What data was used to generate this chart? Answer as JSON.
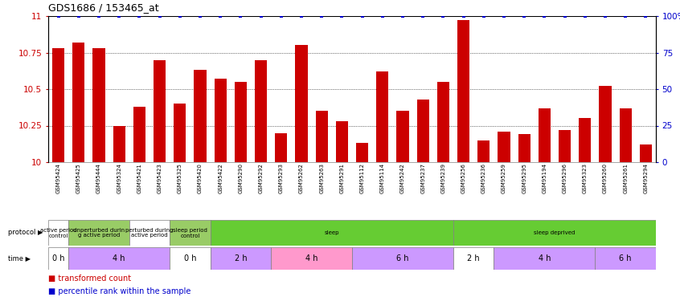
{
  "title": "GDS1686 / 153465_at",
  "samples": [
    "GSM95424",
    "GSM95425",
    "GSM95444",
    "GSM95324",
    "GSM95421",
    "GSM95423",
    "GSM95325",
    "GSM95420",
    "GSM95422",
    "GSM95290",
    "GSM95292",
    "GSM95293",
    "GSM95262",
    "GSM95263",
    "GSM95291",
    "GSM95112",
    "GSM95114",
    "GSM95242",
    "GSM95237",
    "GSM95239",
    "GSM95256",
    "GSM95236",
    "GSM95259",
    "GSM95295",
    "GSM95194",
    "GSM95296",
    "GSM95323",
    "GSM95260",
    "GSM95261",
    "GSM95294"
  ],
  "values": [
    10.78,
    10.82,
    10.78,
    10.25,
    10.38,
    10.7,
    10.4,
    10.63,
    10.57,
    10.55,
    10.7,
    10.2,
    10.8,
    10.35,
    10.28,
    10.13,
    10.62,
    10.35,
    10.43,
    10.55,
    10.97,
    10.15,
    10.21,
    10.19,
    10.37,
    10.22,
    10.3,
    10.52,
    10.37,
    10.12
  ],
  "bar_color": "#cc0000",
  "dot_color": "#0000cc",
  "ylim": [
    10,
    11
  ],
  "y2lim": [
    0,
    100
  ],
  "yticks": [
    10,
    10.25,
    10.5,
    10.75,
    11
  ],
  "y2ticks": [
    0,
    25,
    50,
    75,
    100
  ],
  "ytick_labels": [
    "10",
    "10.25",
    "10.5",
    "10.75",
    "11"
  ],
  "y2tick_labels": [
    "0",
    "25",
    "50",
    "75",
    "100%"
  ],
  "protocol_groups": [
    {
      "label": "active period\ncontrol",
      "start": 0,
      "end": 1,
      "color": "#ffffff"
    },
    {
      "label": "unperturbed durin\ng active period",
      "start": 1,
      "end": 4,
      "color": "#99cc66"
    },
    {
      "label": "perturbed during\nactive period",
      "start": 4,
      "end": 6,
      "color": "#ffffff"
    },
    {
      "label": "sleep period\ncontrol",
      "start": 6,
      "end": 8,
      "color": "#99cc66"
    },
    {
      "label": "sleep",
      "start": 8,
      "end": 20,
      "color": "#66cc33"
    },
    {
      "label": "sleep deprived",
      "start": 20,
      "end": 30,
      "color": "#66cc33"
    }
  ],
  "time_groups": [
    {
      "label": "0 h",
      "start": 0,
      "end": 1,
      "color": "#ffffff"
    },
    {
      "label": "4 h",
      "start": 1,
      "end": 6,
      "color": "#cc99ff"
    },
    {
      "label": "0 h",
      "start": 6,
      "end": 8,
      "color": "#ffffff"
    },
    {
      "label": "2 h",
      "start": 8,
      "end": 11,
      "color": "#cc99ff"
    },
    {
      "label": "4 h",
      "start": 11,
      "end": 15,
      "color": "#ff99cc"
    },
    {
      "label": "6 h",
      "start": 15,
      "end": 20,
      "color": "#cc99ff"
    },
    {
      "label": "2 h",
      "start": 20,
      "end": 22,
      "color": "#ffffff"
    },
    {
      "label": "4 h",
      "start": 22,
      "end": 27,
      "color": "#cc99ff"
    },
    {
      "label": "6 h",
      "start": 27,
      "end": 30,
      "color": "#cc99ff"
    }
  ],
  "background_color": "#ffffff"
}
